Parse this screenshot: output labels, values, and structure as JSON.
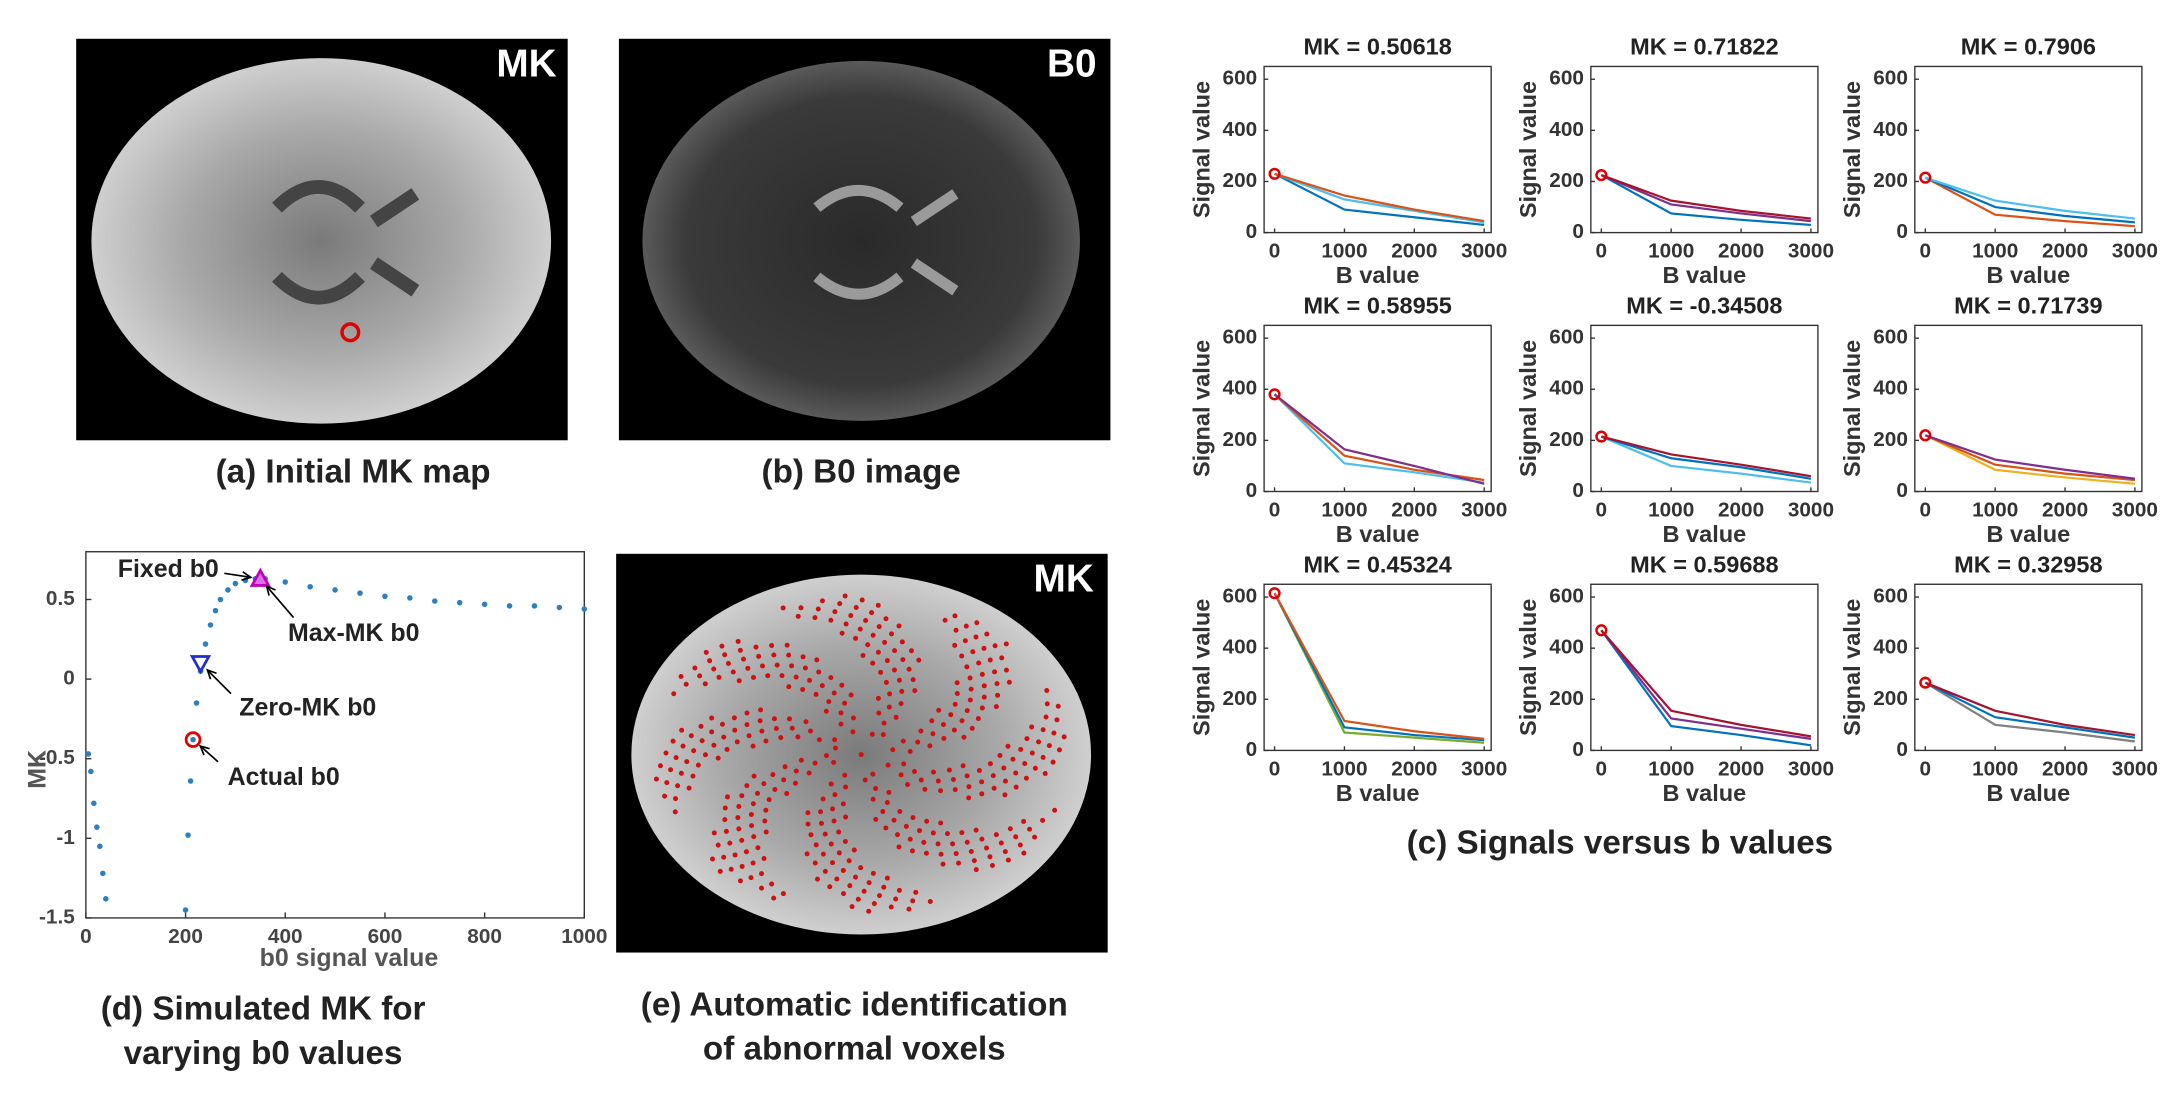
{
  "panels": [
    {
      "image_label": "MK",
      "caption": [
        "(a) Initial MK map"
      ]
    },
    {
      "image_label": "B0",
      "caption": [
        "(b) B0 image"
      ]
    },
    {
      "image_label": "MK",
      "caption": [
        "(e) Automatic identification",
        "of abnormal voxels"
      ]
    }
  ],
  "captions": {
    "c": "(c) Signals versus b values",
    "d": [
      "(d) Simulated MK for",
      "varying b0 values"
    ]
  },
  "chart_data": [
    {
      "type": "scatter",
      "x_label": "b0 signal value",
      "y_label": "MK",
      "xlim": [
        0,
        1000
      ],
      "ylim": [
        -1.5,
        0.8
      ],
      "xticks": [
        0,
        200,
        400,
        600,
        800,
        1000
      ],
      "yticks": [
        -1.5,
        -1,
        -0.5,
        0,
        0.5
      ],
      "series": [
        {
          "color": "#2c7fc0",
          "x": [
            5,
            10,
            16,
            22,
            28,
            34,
            40,
            200,
            205,
            210,
            215,
            222,
            230,
            240,
            250,
            260,
            270,
            285,
            300,
            320,
            340,
            360,
            400,
            450,
            500,
            550,
            600,
            650,
            700,
            750,
            800,
            850,
            900,
            950,
            1000
          ],
          "values": [
            -0.47,
            -0.58,
            -0.78,
            -0.93,
            -1.05,
            -1.22,
            -1.38,
            -1.45,
            -0.98,
            -0.64,
            -0.38,
            -0.15,
            0.05,
            0.22,
            0.34,
            0.43,
            0.5,
            0.56,
            0.6,
            0.62,
            0.63,
            0.63,
            0.61,
            0.58,
            0.56,
            0.54,
            0.52,
            0.51,
            0.49,
            0.48,
            0.47,
            0.46,
            0.46,
            0.45,
            0.44
          ]
        }
      ],
      "markers": [
        {
          "shape": "triangle",
          "color": "#c000c0",
          "x": 350,
          "y": 0.63
        },
        {
          "shape": "inverted-triangle",
          "color": "#1f2fd0",
          "x": 230,
          "y": 0.1
        },
        {
          "shape": "circle",
          "color": "#e00000",
          "x": 215,
          "y": -0.38
        }
      ],
      "annotations": [
        {
          "text": "Fixed b0",
          "x": 350,
          "y": 0.63
        },
        {
          "text": "Max-MK b0",
          "x": 350,
          "y": 0.63
        },
        {
          "text": "Zero-MK b0",
          "x": 230,
          "y": 0.1
        },
        {
          "text": "Actual b0",
          "x": 215,
          "y": -0.38
        }
      ]
    },
    {
      "type": "line",
      "title": "MK = 0.50618",
      "x_label": "B value",
      "y_label": "Signal value",
      "x": [
        0,
        1000,
        2000,
        3000
      ],
      "xlim": [
        -150,
        3100
      ],
      "ylim": [
        0,
        650
      ],
      "xticks": [
        0,
        1000,
        2000,
        3000
      ],
      "yticks": [
        0,
        200,
        400,
        600
      ],
      "marker_color": "#e00000",
      "series": [
        {
          "color": "#0072bd",
          "values": [
            230,
            90,
            60,
            30
          ]
        },
        {
          "color": "#4dbeee",
          "values": [
            230,
            130,
            85,
            40
          ]
        },
        {
          "color": "#d95319",
          "values": [
            230,
            145,
            90,
            45
          ]
        }
      ]
    },
    {
      "type": "line",
      "title": "MK = 0.71822",
      "x_label": "B value",
      "y_label": "Signal value",
      "x": [
        0,
        1000,
        2000,
        3000
      ],
      "xlim": [
        -150,
        3100
      ],
      "ylim": [
        0,
        650
      ],
      "xticks": [
        0,
        1000,
        2000,
        3000
      ],
      "yticks": [
        0,
        200,
        400,
        600
      ],
      "marker_color": "#e00000",
      "series": [
        {
          "color": "#0072bd",
          "values": [
            225,
            75,
            50,
            30
          ]
        },
        {
          "color": "#7e2f8e",
          "values": [
            225,
            110,
            75,
            45
          ]
        },
        {
          "color": "#a2142f",
          "values": [
            225,
            125,
            85,
            55
          ]
        }
      ]
    },
    {
      "type": "line",
      "title": "MK = 0.7906",
      "x_label": "B value",
      "y_label": "Signal value",
      "x": [
        0,
        1000,
        2000,
        3000
      ],
      "xlim": [
        -150,
        3100
      ],
      "ylim": [
        0,
        650
      ],
      "xticks": [
        0,
        1000,
        2000,
        3000
      ],
      "yticks": [
        0,
        200,
        400,
        600
      ],
      "marker_color": "#e00000",
      "series": [
        {
          "color": "#d95319",
          "values": [
            215,
            70,
            45,
            25
          ]
        },
        {
          "color": "#0072bd",
          "values": [
            215,
            100,
            65,
            40
          ]
        },
        {
          "color": "#4dbeee",
          "values": [
            215,
            125,
            85,
            55
          ]
        }
      ]
    },
    {
      "type": "line",
      "title": "MK = 0.58955",
      "x_label": "B value",
      "y_label": "Signal value",
      "x": [
        0,
        1000,
        2000,
        3000
      ],
      "xlim": [
        -150,
        3100
      ],
      "ylim": [
        0,
        650
      ],
      "xticks": [
        0,
        1000,
        2000,
        3000
      ],
      "yticks": [
        0,
        200,
        400,
        600
      ],
      "marker_color": "#e00000",
      "series": [
        {
          "color": "#4dbeee",
          "values": [
            380,
            110,
            75,
            35
          ]
        },
        {
          "color": "#d95319",
          "values": [
            380,
            140,
            85,
            45
          ]
        },
        {
          "color": "#7e2f8e",
          "values": [
            380,
            165,
            100,
            30
          ]
        }
      ]
    },
    {
      "type": "line",
      "title": "MK = -0.34508",
      "x_label": "B value",
      "y_label": "Signal value",
      "x": [
        0,
        1000,
        2000,
        3000
      ],
      "xlim": [
        -150,
        3100
      ],
      "ylim": [
        0,
        650
      ],
      "xticks": [
        0,
        1000,
        2000,
        3000
      ],
      "yticks": [
        0,
        200,
        400,
        600
      ],
      "marker_color": "#e00000",
      "series": [
        {
          "color": "#4dbeee",
          "values": [
            215,
            100,
            70,
            35
          ]
        },
        {
          "color": "#0072bd",
          "values": [
            215,
            130,
            95,
            50
          ]
        },
        {
          "color": "#a2142f",
          "values": [
            215,
            145,
            105,
            60
          ]
        }
      ]
    },
    {
      "type": "line",
      "title": "MK = 0.71739",
      "x_label": "B value",
      "y_label": "Signal value",
      "x": [
        0,
        1000,
        2000,
        3000
      ],
      "xlim": [
        -150,
        3100
      ],
      "ylim": [
        0,
        650
      ],
      "xticks": [
        0,
        1000,
        2000,
        3000
      ],
      "yticks": [
        0,
        200,
        400,
        600
      ],
      "marker_color": "#e00000",
      "series": [
        {
          "color": "#edb120",
          "values": [
            220,
            85,
            55,
            30
          ]
        },
        {
          "color": "#d95319",
          "values": [
            220,
            105,
            70,
            45
          ]
        },
        {
          "color": "#7e2f8e",
          "values": [
            220,
            125,
            85,
            50
          ]
        }
      ]
    },
    {
      "type": "line",
      "title": "MK = 0.45324",
      "x_label": "B value",
      "y_label": "Signal value",
      "x": [
        0,
        1000,
        2000,
        3000
      ],
      "xlim": [
        -150,
        3100
      ],
      "ylim": [
        0,
        650
      ],
      "xticks": [
        0,
        1000,
        2000,
        3000
      ],
      "yticks": [
        0,
        200,
        400,
        600
      ],
      "marker_color": "#e00000",
      "series": [
        {
          "color": "#77ac30",
          "values": [
            615,
            70,
            50,
            30
          ]
        },
        {
          "color": "#0072bd",
          "values": [
            615,
            90,
            60,
            40
          ]
        },
        {
          "color": "#d95319",
          "values": [
            615,
            115,
            75,
            45
          ]
        }
      ]
    },
    {
      "type": "line",
      "title": "MK = 0.59688",
      "x_label": "B value",
      "y_label": "Signal value",
      "x": [
        0,
        1000,
        2000,
        3000
      ],
      "xlim": [
        -150,
        3100
      ],
      "ylim": [
        0,
        650
      ],
      "xticks": [
        0,
        1000,
        2000,
        3000
      ],
      "yticks": [
        0,
        200,
        400,
        600
      ],
      "marker_color": "#e00000",
      "series": [
        {
          "color": "#0072bd",
          "values": [
            470,
            95,
            60,
            20
          ]
        },
        {
          "color": "#7e2f8e",
          "values": [
            470,
            125,
            85,
            45
          ]
        },
        {
          "color": "#a2142f",
          "values": [
            470,
            155,
            100,
            55
          ]
        }
      ]
    },
    {
      "type": "line",
      "title": "MK = 0.32958",
      "x_label": "B value",
      "y_label": "Signal value",
      "x": [
        0,
        1000,
        2000,
        3000
      ],
      "xlim": [
        -150,
        3100
      ],
      "ylim": [
        0,
        650
      ],
      "xticks": [
        0,
        1000,
        2000,
        3000
      ],
      "yticks": [
        0,
        200,
        400,
        600
      ],
      "marker_color": "#e00000",
      "series": [
        {
          "color": "#7f7f7f",
          "values": [
            265,
            100,
            70,
            35
          ]
        },
        {
          "color": "#0072bd",
          "values": [
            265,
            130,
            90,
            50
          ]
        },
        {
          "color": "#a2142f",
          "values": [
            265,
            155,
            100,
            60
          ]
        }
      ]
    }
  ]
}
